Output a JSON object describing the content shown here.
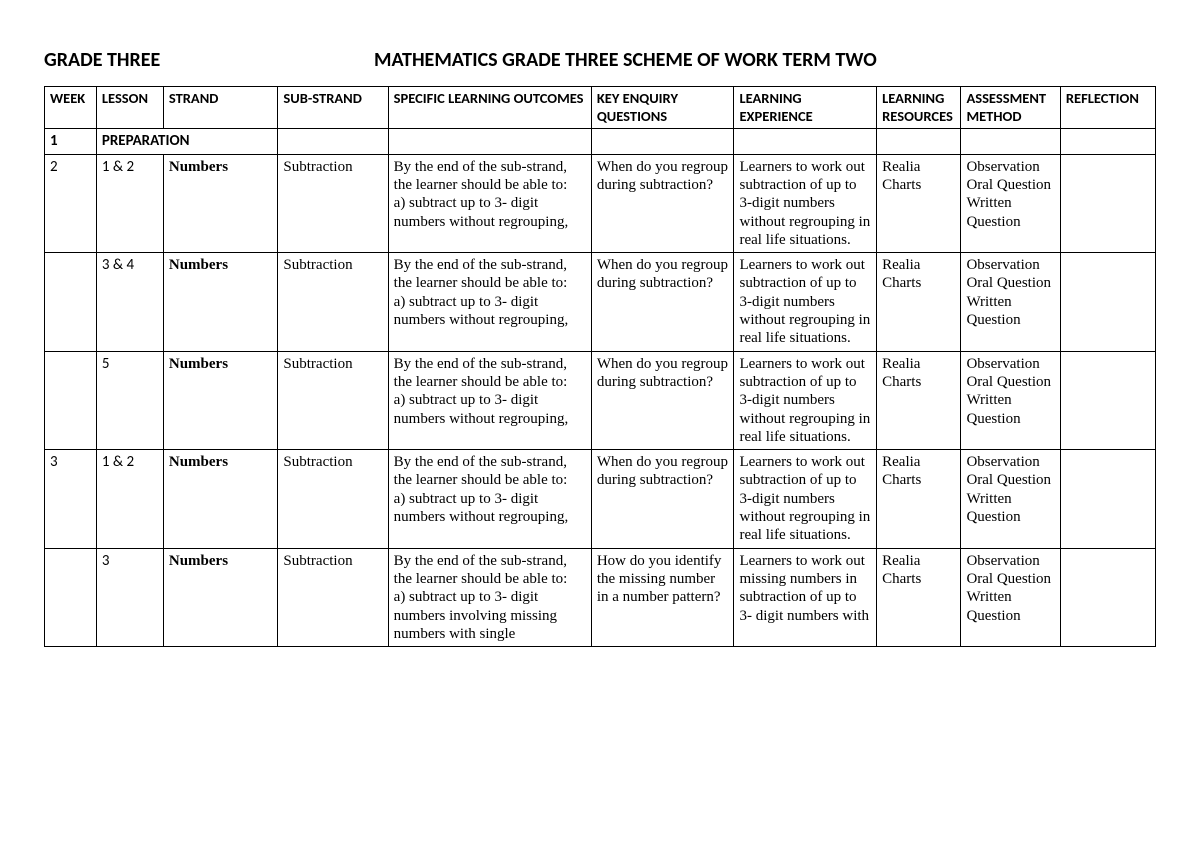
{
  "header": {
    "left": "GRADE THREE",
    "right": "MATHEMATICS GRADE THREE SCHEME OF WORK TERM TWO"
  },
  "columns": {
    "week": "WEEK",
    "lesson": "LESSON",
    "strand": "STRAND",
    "substrand": "SUB-STRAND",
    "slo": "SPECIFIC LEARNING OUTCOMES",
    "keq": "KEY ENQUIRY QUESTIONS",
    "exp": "LEARNING EXPERIENCE",
    "res": "LEARNING RESOURCES",
    "ass": "ASSESSMENT METHOD",
    "ref": "REFLECTION"
  },
  "rows": [
    {
      "type": "prep",
      "week": "1",
      "text": "PREPARATION"
    },
    {
      "type": "data",
      "week": "2",
      "lesson": "1 & 2",
      "strand": "Numbers",
      "substrand": "Subtraction",
      "slo": "By the end of the sub-strand, the learner should be able to:\na) subtract up to 3- digit numbers without regrouping,",
      "keq": "When do you regroup during subtraction?",
      "exp": "Learners to work out subtraction of up to 3-digit numbers without regrouping in real life situations.",
      "res": "Realia Charts",
      "ass": "Observation Oral Question Written Question",
      "ref": ""
    },
    {
      "type": "data",
      "week": "",
      "lesson": "3 & 4",
      "strand": "Numbers",
      "substrand": "Subtraction",
      "slo": "By the end of the sub-strand, the learner should be able to:\na) subtract up to 3- digit numbers without regrouping,",
      "keq": "When do you regroup during subtraction?",
      "exp": "Learners to work out subtraction of up to 3-digit numbers without regrouping in real life situations.",
      "res": "Realia Charts",
      "ass": "Observation Oral Question Written Question",
      "ref": ""
    },
    {
      "type": "data",
      "week": "",
      "lesson": "5",
      "strand": "Numbers",
      "substrand": "Subtraction",
      "slo": "By the end of the sub-strand, the learner should be able to:\na) subtract up to 3- digit numbers without regrouping,",
      "keq": "When do you regroup during subtraction?",
      "exp": "Learners to work out subtraction of up to 3-digit numbers without regrouping in real life situations.",
      "res": "Realia Charts",
      "ass": "Observation Oral Question Written Question",
      "ref": ""
    },
    {
      "type": "data",
      "week": "3",
      "lesson": "1 & 2",
      "strand": "Numbers",
      "substrand": "Subtraction",
      "slo": "By the end of the sub-strand, the learner should be able to:\na) subtract up to 3- digit numbers without regrouping,",
      "keq": "When do you regroup during subtraction?",
      "exp": "Learners to work out subtraction of up to 3-digit numbers without regrouping in real life situations.",
      "res": "Realia Charts",
      "ass": "Observation Oral Question Written Question",
      "ref": ""
    },
    {
      "type": "data",
      "week": "",
      "lesson": "3",
      "strand": "Numbers",
      "substrand": "Subtraction",
      "slo": "By the end of the sub-strand, the learner should be able to:\na) subtract up to 3- digit numbers involving missing numbers with single",
      "keq": "How do you identify the missing number in a number pattern?",
      "exp": "Learners to work out missing numbers in subtraction of up to 3- digit numbers with",
      "res": "Realia Charts",
      "ass": "Observation Oral Question Written Question",
      "ref": ""
    }
  ]
}
